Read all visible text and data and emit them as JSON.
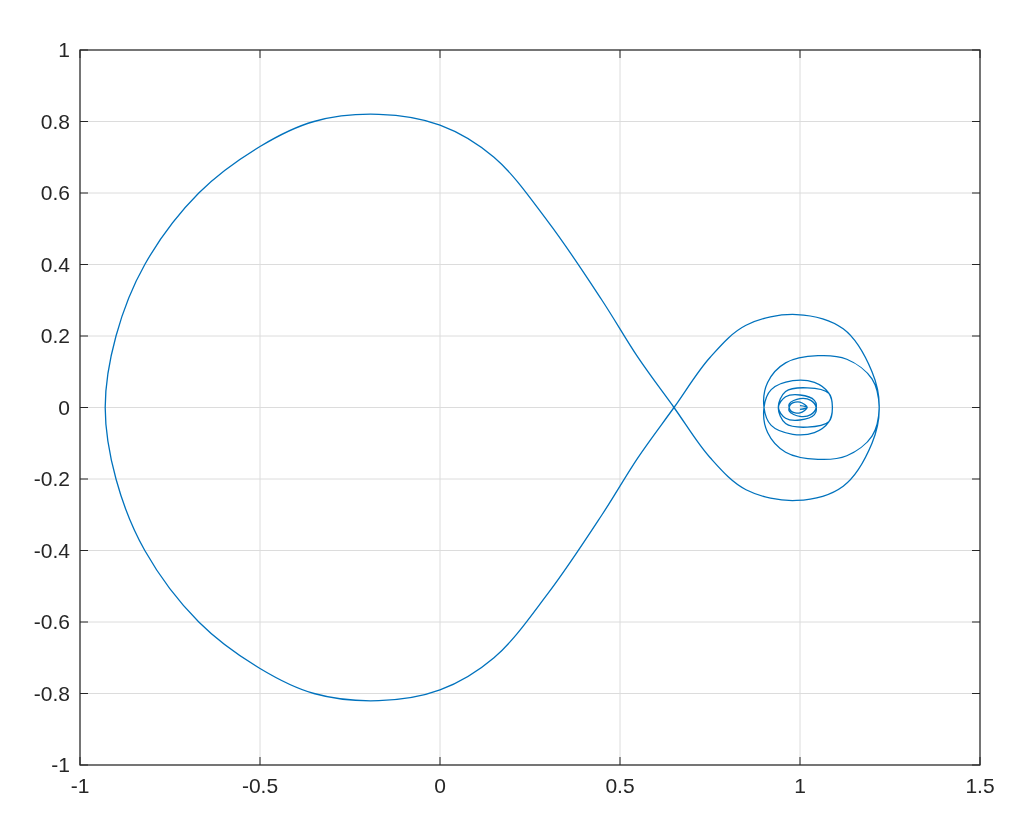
{
  "chart_data": {
    "type": "line",
    "xlim": [
      -1,
      1.5
    ],
    "ylim": [
      -1,
      1
    ],
    "xticks": [
      -1,
      -0.5,
      0,
      0.5,
      1,
      1.5
    ],
    "yticks": [
      -1,
      -0.8,
      -0.6,
      -0.4,
      -0.2,
      0,
      0.2,
      0.4,
      0.6,
      0.8,
      1
    ],
    "grid": true,
    "series": [
      {
        "color": "#0072bd",
        "x": [
          1.0,
          1.02,
          1.0,
          0.975,
          0.97,
          1.0,
          1.03,
          1.045,
          1.04,
          1.0,
          0.96,
          0.94,
          0.96,
          1.02,
          1.08,
          1.09,
          1.08,
          1.04,
          0.98,
          0.92,
          0.9,
          0.91,
          0.96,
          1.05,
          1.13,
          1.2,
          1.22,
          1.2,
          1.12,
          0.99,
          0.85,
          0.75,
          0.65,
          0.55,
          0.45,
          0.3,
          0.15,
          0,
          -0.17,
          -0.35,
          -0.5,
          -0.67,
          -0.82,
          -0.9,
          -0.93,
          -0.9,
          -0.82,
          -0.67,
          -0.5,
          -0.35,
          -0.17,
          0,
          0.15,
          0.3,
          0.45,
          0.55,
          0.65,
          0.75,
          0.85,
          0.99,
          1.12,
          1.2,
          1.22,
          1.2,
          1.13,
          1.05,
          0.96,
          0.91,
          0.9,
          0.92,
          0.98,
          1.04,
          1.08,
          1.09,
          1.08,
          1.02,
          0.96,
          0.94,
          0.96,
          1.0,
          1.04,
          1.045,
          1.03,
          1.0,
          0.97,
          0.975,
          1.0,
          1.02,
          1.0
        ],
        "values": [
          -0.005,
          0,
          0.015,
          0.01,
          -0.01,
          -0.025,
          -0.02,
          0,
          0.02,
          0.035,
          0.03,
          0,
          -0.045,
          -0.055,
          -0.04,
          0,
          0.04,
          0.07,
          0.075,
          0.05,
          0,
          -0.07,
          -0.125,
          -0.145,
          -0.135,
          -0.08,
          0,
          0.1,
          0.22,
          0.26,
          0.23,
          0.14,
          0,
          -0.14,
          -0.3,
          -0.52,
          -0.7,
          -0.79,
          -0.82,
          -0.8,
          -0.73,
          -0.6,
          -0.4,
          -0.2,
          0,
          0.2,
          0.4,
          0.6,
          0.73,
          0.8,
          0.82,
          0.79,
          0.7,
          0.52,
          0.3,
          0.14,
          0,
          -0.14,
          -0.23,
          -0.26,
          -0.22,
          -0.1,
          0,
          0.08,
          0.135,
          0.145,
          0.125,
          0.07,
          0,
          -0.05,
          -0.075,
          -0.07,
          -0.04,
          0,
          0.04,
          0.055,
          0.045,
          0,
          -0.03,
          -0.035,
          -0.02,
          0,
          0.02,
          0.025,
          0.01,
          -0.01,
          -0.015,
          0,
          0.005
        ]
      }
    ]
  }
}
